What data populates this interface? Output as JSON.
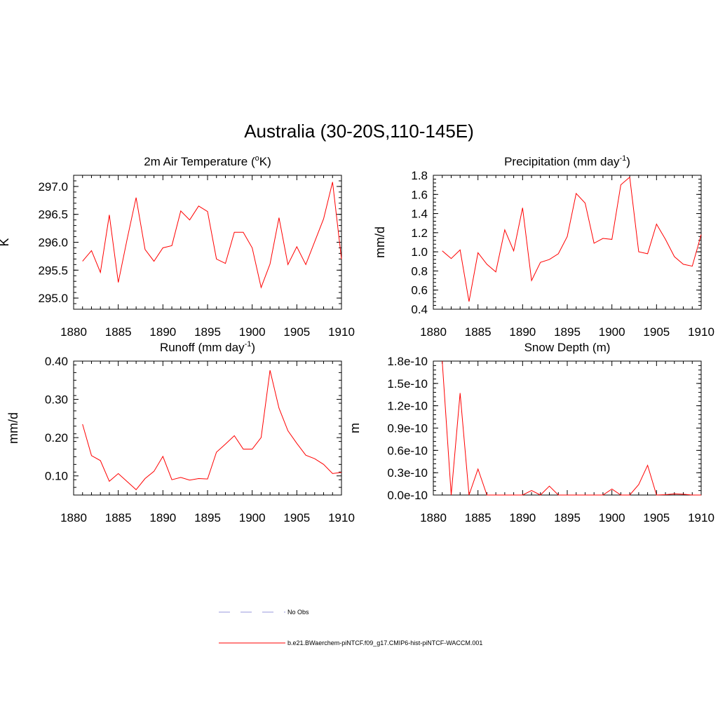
{
  "figure": {
    "title": "Australia (30-20S,110-145E)"
  },
  "legend": {
    "entries": [
      {
        "label": "No Obs",
        "color": "#9999dd",
        "style": "dashed"
      },
      {
        "label": "b.e21.BWaerchem-piNTCF.f09_g17.CMIP6-hist-piNTCF-WACCM.001",
        "color": "#ff0000",
        "style": "solid"
      }
    ]
  },
  "chart_data": [
    {
      "type": "line",
      "title_main": "2m Air Temperature (",
      "title_sup": "o",
      "title_after": "K)",
      "ylabel": "K",
      "xlabel": "",
      "xlim": [
        1880,
        1910
      ],
      "ylim": [
        294.8,
        297.2
      ],
      "xticks": [
        1880,
        1885,
        1890,
        1895,
        1900,
        1905,
        1910
      ],
      "yticks": [
        295.0,
        295.5,
        296.0,
        296.5,
        297.0
      ],
      "ytick_labels": [
        "295.0",
        "295.5",
        "296.0",
        "296.5",
        "297.0"
      ],
      "x": [
        1881,
        1882,
        1883,
        1884,
        1885,
        1886,
        1887,
        1888,
        1889,
        1890,
        1891,
        1892,
        1893,
        1894,
        1895,
        1896,
        1897,
        1898,
        1899,
        1900,
        1901,
        1902,
        1903,
        1904,
        1905,
        1906,
        1907,
        1908,
        1909,
        1910
      ],
      "series": [
        {
          "color": "#ff0000",
          "values": [
            295.66,
            295.85,
            295.46,
            296.49,
            295.28,
            296.06,
            296.8,
            295.87,
            295.66,
            295.9,
            295.94,
            296.56,
            296.4,
            296.65,
            296.55,
            295.7,
            295.62,
            296.18,
            296.18,
            295.9,
            295.19,
            295.61,
            296.44,
            295.6,
            295.92,
            295.6,
            296.01,
            296.42,
            297.08,
            295.7
          ]
        }
      ]
    },
    {
      "type": "line",
      "title_main": "Precipitation (mm day",
      "title_sup": "-1",
      "title_after": ")",
      "ylabel": "mm/d",
      "xlabel": "",
      "xlim": [
        1880,
        1910
      ],
      "ylim": [
        0.4,
        1.8
      ],
      "xticks": [
        1880,
        1885,
        1890,
        1895,
        1900,
        1905,
        1910
      ],
      "yticks": [
        0.4,
        0.6,
        0.8,
        1.0,
        1.2,
        1.4,
        1.6,
        1.8
      ],
      "ytick_labels": [
        "0.4",
        "0.6",
        "0.8",
        "1.0",
        "1.2",
        "1.4",
        "1.6",
        "1.8"
      ],
      "x": [
        1881,
        1882,
        1883,
        1884,
        1885,
        1886,
        1887,
        1888,
        1889,
        1890,
        1891,
        1892,
        1893,
        1894,
        1895,
        1896,
        1897,
        1898,
        1899,
        1900,
        1901,
        1902,
        1903,
        1904,
        1905,
        1906,
        1907,
        1908,
        1909,
        1910
      ],
      "series": [
        {
          "color": "#ff0000",
          "values": [
            1.01,
            0.93,
            1.02,
            0.48,
            0.99,
            0.87,
            0.79,
            1.23,
            1.01,
            1.46,
            0.7,
            0.89,
            0.92,
            0.98,
            1.16,
            1.61,
            1.51,
            1.09,
            1.14,
            1.13,
            1.7,
            1.78,
            1.0,
            0.98,
            1.29,
            1.13,
            0.95,
            0.87,
            0.85,
            1.18
          ]
        }
      ]
    },
    {
      "type": "line",
      "title_main": "Runoff (mm day",
      "title_sup": "-1",
      "title_after": ")",
      "ylabel": "mm/d",
      "xlabel": "",
      "xlim": [
        1880,
        1910
      ],
      "ylim": [
        0.05,
        0.4
      ],
      "xticks": [
        1880,
        1885,
        1890,
        1895,
        1900,
        1905,
        1910
      ],
      "yticks": [
        0.1,
        0.2,
        0.3,
        0.4
      ],
      "ytick_labels": [
        "0.10",
        "0.20",
        "0.30",
        "0.40"
      ],
      "x": [
        1881,
        1882,
        1883,
        1884,
        1885,
        1886,
        1887,
        1888,
        1889,
        1890,
        1891,
        1892,
        1893,
        1894,
        1895,
        1896,
        1897,
        1898,
        1899,
        1900,
        1901,
        1902,
        1903,
        1904,
        1905,
        1906,
        1907,
        1908,
        1909,
        1910
      ],
      "series": [
        {
          "color": "#ff0000",
          "values": [
            0.235,
            0.153,
            0.14,
            0.086,
            0.106,
            0.085,
            0.064,
            0.093,
            0.112,
            0.151,
            0.09,
            0.096,
            0.089,
            0.093,
            0.092,
            0.162,
            0.183,
            0.205,
            0.17,
            0.17,
            0.2,
            0.376,
            0.277,
            0.218,
            0.185,
            0.154,
            0.145,
            0.13,
            0.106,
            0.109
          ]
        }
      ]
    },
    {
      "type": "line",
      "title_main": "Snow Depth (m)",
      "title_sup": "",
      "title_after": "",
      "ylabel": "m",
      "xlabel": "",
      "xlim": [
        1880,
        1910
      ],
      "ylim": [
        0,
        1.8e-10
      ],
      "xticks": [
        1880,
        1885,
        1890,
        1895,
        1900,
        1905,
        1910
      ],
      "yticks": [
        0,
        3e-11,
        6e-11,
        9e-11,
        1.2e-10,
        1.5e-10,
        1.8e-10
      ],
      "ytick_labels": [
        "0.0e-10",
        "0.3e-10",
        "0.6e-10",
        "0.9e-10",
        "1.2e-10",
        "1.5e-10",
        "1.8e-10"
      ],
      "x": [
        1881,
        1882,
        1883,
        1884,
        1885,
        1886,
        1887,
        1888,
        1889,
        1890,
        1891,
        1892,
        1893,
        1894,
        1895,
        1896,
        1897,
        1898,
        1899,
        1900,
        1901,
        1902,
        1903,
        1904,
        1905,
        1906,
        1907,
        1908,
        1909,
        1910
      ],
      "series": [
        {
          "color": "#ff0000",
          "values": [
            1.8e-10,
            0,
            1.37e-10,
            0,
            3.5e-11,
            0,
            0,
            0,
            0,
            0,
            6e-12,
            0,
            1.2e-11,
            0,
            0,
            0,
            0,
            0,
            0,
            8e-12,
            0,
            0,
            1.4e-11,
            4e-11,
            0,
            5e-13,
            1.5e-12,
            1e-12,
            0,
            0
          ]
        }
      ]
    }
  ]
}
